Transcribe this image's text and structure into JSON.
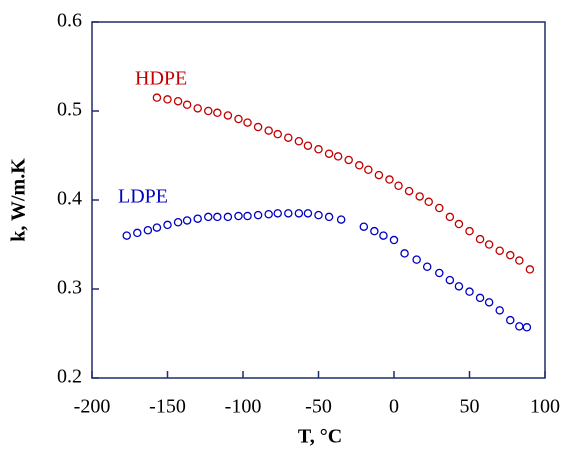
{
  "chart_data": {
    "type": "scatter",
    "xlabel": "T, °C",
    "ylabel": "k, W/m.K",
    "xlim": [
      -200,
      100
    ],
    "xticks": [
      -200,
      -150,
      -100,
      -50,
      0,
      50,
      100
    ],
    "ylim": [
      0.2,
      0.6
    ],
    "yticks": [
      0.2,
      0.3,
      0.4,
      0.5,
      0.6
    ],
    "annotations": [
      "HDPE",
      "LDPE"
    ],
    "series": [
      {
        "name": "HDPE",
        "color": "#c00000",
        "x": [
          -157,
          -150,
          -143,
          -137,
          -130,
          -123,
          -117,
          -110,
          -103,
          -97,
          -90,
          -83,
          -77,
          -70,
          -63,
          -57,
          -50,
          -43,
          -37,
          -30,
          -23,
          -17,
          -10,
          -3,
          3,
          10,
          17,
          23,
          30,
          37,
          43,
          50,
          57,
          63,
          70,
          77,
          83,
          90
        ],
        "values": [
          0.515,
          0.513,
          0.511,
          0.507,
          0.503,
          0.5,
          0.498,
          0.495,
          0.491,
          0.487,
          0.482,
          0.478,
          0.474,
          0.47,
          0.466,
          0.461,
          0.457,
          0.452,
          0.449,
          0.445,
          0.439,
          0.434,
          0.428,
          0.423,
          0.416,
          0.41,
          0.404,
          0.398,
          0.391,
          0.381,
          0.373,
          0.365,
          0.356,
          0.35,
          0.343,
          0.338,
          0.332,
          0.322
        ]
      },
      {
        "name": "LDPE",
        "color": "#0000c0",
        "x": [
          -177,
          -170,
          -163,
          -157,
          -150,
          -143,
          -137,
          -130,
          -123,
          -117,
          -110,
          -103,
          -97,
          -90,
          -83,
          -77,
          -70,
          -63,
          -57,
          -50,
          -43,
          -35,
          -20,
          -13,
          -7,
          0,
          7,
          15,
          22,
          30,
          37,
          43,
          50,
          57,
          63,
          70,
          77,
          83,
          88
        ],
        "values": [
          0.36,
          0.363,
          0.366,
          0.369,
          0.372,
          0.375,
          0.377,
          0.379,
          0.381,
          0.381,
          0.381,
          0.382,
          0.382,
          0.383,
          0.384,
          0.385,
          0.385,
          0.385,
          0.385,
          0.383,
          0.381,
          0.378,
          0.37,
          0.365,
          0.36,
          0.355,
          0.34,
          0.333,
          0.325,
          0.318,
          0.31,
          0.303,
          0.297,
          0.29,
          0.285,
          0.276,
          0.265,
          0.258,
          0.257
        ]
      }
    ]
  }
}
